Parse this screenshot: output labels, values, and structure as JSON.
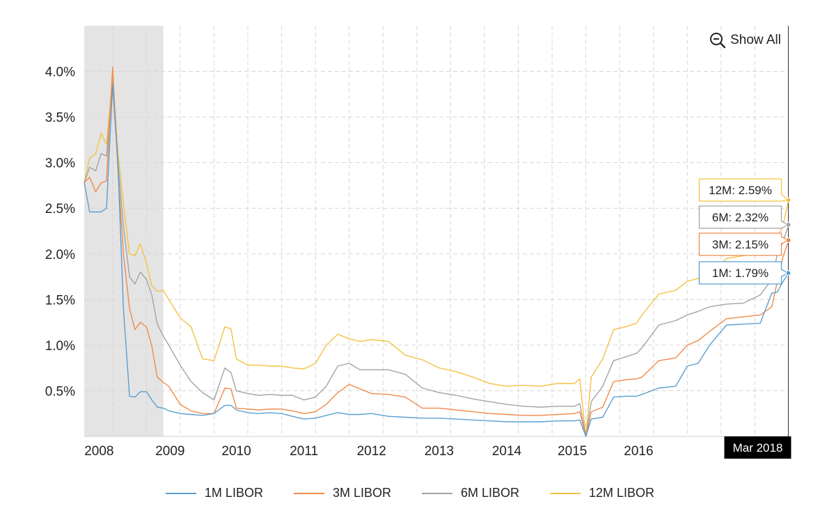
{
  "show_all_label": "Show All",
  "current_date_label": "Mar 2018",
  "colors": {
    "1M LIBOR": "#5b9fd0",
    "3M LIBOR": "#ef8a4a",
    "6M LIBOR": "#a3a3a3",
    "12M LIBOR": "#f5c142",
    "recession_band": "#e4e4e4"
  },
  "tooltips": [
    {
      "series": "12M LIBOR",
      "text": "12M: 2.59%"
    },
    {
      "series": "6M LIBOR",
      "text": "6M: 2.32%"
    },
    {
      "series": "3M LIBOR",
      "text": "3M: 2.15%"
    },
    {
      "series": "1M LIBOR",
      "text": "1M: 1.79%"
    }
  ],
  "chart_data": {
    "type": "line",
    "title": "",
    "xlabel": "",
    "ylabel": "",
    "x_tick_labels": [
      "2008",
      "2009",
      "2010",
      "2011",
      "2012",
      "2013",
      "2014",
      "2015",
      "2016"
    ],
    "y_tick_labels": [
      "0.5%",
      "1.0%",
      "1.5%",
      "2.0%",
      "2.5%",
      "3.0%",
      "3.5%",
      "4.0%"
    ],
    "y_ticks": [
      0.5,
      1.0,
      1.5,
      2.0,
      2.5,
      3.0,
      3.5,
      4.0
    ],
    "xlim": [
      2007.75,
      2018.17
    ],
    "ylim": [
      0,
      4.5
    ],
    "grid": true,
    "legend_position": "bottom",
    "shaded_region": {
      "x_start": 2007.75,
      "x_end": 2008.92
    },
    "series": [
      {
        "name": "1M LIBOR",
        "x": [
          2007.75,
          2007.83,
          2007.92,
          2008.0,
          2008.08,
          2008.17,
          2008.25,
          2008.33,
          2008.42,
          2008.5,
          2008.58,
          2008.67,
          2008.75,
          2008.83,
          2008.92,
          2009.0,
          2009.17,
          2009.33,
          2009.5,
          2009.67,
          2009.83,
          2009.92,
          2010.0,
          2010.17,
          2010.33,
          2010.5,
          2010.67,
          2010.83,
          2011.0,
          2011.17,
          2011.33,
          2011.5,
          2011.67,
          2011.83,
          2012.0,
          2012.25,
          2012.5,
          2012.75,
          2013.0,
          2013.25,
          2013.5,
          2013.75,
          2014.0,
          2014.25,
          2014.5,
          2014.75,
          2015.0,
          2015.08,
          2015.17,
          2015.25,
          2015.42,
          2015.58,
          2015.75,
          2015.92,
          2016.0,
          2016.25,
          2016.5,
          2016.67,
          2016.83,
          2017.0,
          2017.25,
          2017.5,
          2017.75,
          2017.92,
          2018.0,
          2018.08,
          2018.17
        ],
        "y": [
          2.78,
          2.46,
          2.46,
          2.46,
          2.5,
          3.85,
          2.95,
          1.4,
          0.44,
          0.43,
          0.49,
          0.49,
          0.4,
          0.32,
          0.31,
          0.28,
          0.25,
          0.24,
          0.23,
          0.25,
          0.34,
          0.34,
          0.29,
          0.26,
          0.25,
          0.26,
          0.25,
          0.22,
          0.19,
          0.2,
          0.23,
          0.26,
          0.24,
          0.24,
          0.25,
          0.22,
          0.21,
          0.2,
          0.2,
          0.19,
          0.18,
          0.17,
          0.16,
          0.16,
          0.16,
          0.17,
          0.17,
          0.18,
          0.0,
          0.19,
          0.21,
          0.43,
          0.44,
          0.44,
          0.46,
          0.53,
          0.55,
          0.77,
          0.8,
          1.0,
          1.22,
          1.23,
          1.24,
          1.57,
          1.58,
          1.69,
          1.79
        ]
      },
      {
        "name": "3M LIBOR",
        "x": [
          2007.75,
          2007.83,
          2007.92,
          2008.0,
          2008.08,
          2008.17,
          2008.25,
          2008.33,
          2008.42,
          2008.5,
          2008.58,
          2008.67,
          2008.75,
          2008.83,
          2008.92,
          2009.0,
          2009.17,
          2009.33,
          2009.5,
          2009.67,
          2009.83,
          2009.92,
          2010.0,
          2010.17,
          2010.33,
          2010.5,
          2010.67,
          2010.83,
          2011.0,
          2011.17,
          2011.33,
          2011.5,
          2011.67,
          2011.83,
          2012.0,
          2012.25,
          2012.5,
          2012.75,
          2013.0,
          2013.25,
          2013.5,
          2013.75,
          2014.0,
          2014.25,
          2014.5,
          2014.75,
          2015.0,
          2015.08,
          2015.17,
          2015.25,
          2015.42,
          2015.58,
          2015.75,
          2015.92,
          2016.0,
          2016.25,
          2016.5,
          2016.67,
          2016.83,
          2017.0,
          2017.25,
          2017.5,
          2017.75,
          2017.92,
          2018.0,
          2018.08,
          2018.17
        ],
        "y": [
          2.78,
          2.84,
          2.68,
          2.78,
          2.8,
          4.05,
          2.9,
          2.0,
          1.4,
          1.17,
          1.25,
          1.2,
          0.99,
          0.65,
          0.59,
          0.55,
          0.35,
          0.28,
          0.25,
          0.25,
          0.53,
          0.52,
          0.31,
          0.3,
          0.29,
          0.3,
          0.3,
          0.28,
          0.25,
          0.27,
          0.35,
          0.48,
          0.57,
          0.52,
          0.47,
          0.46,
          0.43,
          0.31,
          0.31,
          0.29,
          0.27,
          0.25,
          0.24,
          0.23,
          0.23,
          0.24,
          0.25,
          0.27,
          0.0,
          0.27,
          0.32,
          0.6,
          0.62,
          0.63,
          0.65,
          0.83,
          0.86,
          1.0,
          1.05,
          1.15,
          1.29,
          1.31,
          1.33,
          1.42,
          1.69,
          1.95,
          2.15
        ]
      },
      {
        "name": "6M LIBOR",
        "x": [
          2007.75,
          2007.83,
          2007.92,
          2008.0,
          2008.08,
          2008.17,
          2008.25,
          2008.33,
          2008.42,
          2008.5,
          2008.58,
          2008.67,
          2008.75,
          2008.83,
          2008.92,
          2009.0,
          2009.17,
          2009.33,
          2009.5,
          2009.67,
          2009.83,
          2009.92,
          2010.0,
          2010.17,
          2010.33,
          2010.5,
          2010.67,
          2010.83,
          2011.0,
          2011.17,
          2011.33,
          2011.5,
          2011.67,
          2011.83,
          2012.0,
          2012.25,
          2012.5,
          2012.75,
          2013.0,
          2013.25,
          2013.5,
          2013.75,
          2014.0,
          2014.25,
          2014.5,
          2014.75,
          2015.0,
          2015.08,
          2015.17,
          2015.25,
          2015.42,
          2015.58,
          2015.75,
          2015.92,
          2016.0,
          2016.25,
          2016.5,
          2016.67,
          2016.83,
          2017.0,
          2017.25,
          2017.5,
          2017.75,
          2017.92,
          2018.0,
          2018.08,
          2018.17
        ],
        "y": [
          2.78,
          2.95,
          2.91,
          3.1,
          3.07,
          3.9,
          3.0,
          2.3,
          1.75,
          1.67,
          1.8,
          1.72,
          1.55,
          1.23,
          1.1,
          1.0,
          0.78,
          0.6,
          0.48,
          0.4,
          0.75,
          0.7,
          0.5,
          0.47,
          0.45,
          0.46,
          0.45,
          0.45,
          0.4,
          0.43,
          0.55,
          0.77,
          0.8,
          0.73,
          0.73,
          0.73,
          0.68,
          0.53,
          0.48,
          0.45,
          0.41,
          0.38,
          0.35,
          0.33,
          0.32,
          0.33,
          0.33,
          0.36,
          0.0,
          0.38,
          0.55,
          0.83,
          0.87,
          0.91,
          0.97,
          1.22,
          1.27,
          1.33,
          1.37,
          1.42,
          1.45,
          1.46,
          1.55,
          1.72,
          1.99,
          2.12,
          2.32
        ]
      },
      {
        "name": "12M LIBOR",
        "x": [
          2007.75,
          2007.83,
          2007.92,
          2008.0,
          2008.08,
          2008.17,
          2008.25,
          2008.33,
          2008.42,
          2008.5,
          2008.58,
          2008.67,
          2008.75,
          2008.83,
          2008.92,
          2009.0,
          2009.17,
          2009.33,
          2009.5,
          2009.67,
          2009.83,
          2009.92,
          2010.0,
          2010.17,
          2010.33,
          2010.5,
          2010.67,
          2010.83,
          2011.0,
          2011.17,
          2011.33,
          2011.5,
          2011.67,
          2011.83,
          2012.0,
          2012.25,
          2012.5,
          2012.75,
          2013.0,
          2013.25,
          2013.5,
          2013.75,
          2014.0,
          2014.25,
          2014.5,
          2014.75,
          2015.0,
          2015.08,
          2015.17,
          2015.25,
          2015.42,
          2015.58,
          2015.75,
          2015.92,
          2016.0,
          2016.25,
          2016.5,
          2016.67,
          2016.83,
          2017.0,
          2017.25,
          2017.5,
          2017.75,
          2017.92,
          2018.0,
          2018.08,
          2018.17
        ],
        "y": [
          2.78,
          3.05,
          3.1,
          3.32,
          3.2,
          3.95,
          3.1,
          2.55,
          2.0,
          1.98,
          2.11,
          1.9,
          1.65,
          1.59,
          1.6,
          1.5,
          1.3,
          1.2,
          0.85,
          0.83,
          1.2,
          1.18,
          0.85,
          0.78,
          0.78,
          0.77,
          0.77,
          0.75,
          0.74,
          0.8,
          1.0,
          1.12,
          1.07,
          1.04,
          1.06,
          1.04,
          0.89,
          0.84,
          0.75,
          0.71,
          0.65,
          0.58,
          0.55,
          0.56,
          0.55,
          0.58,
          0.58,
          0.63,
          0.0,
          0.65,
          0.85,
          1.17,
          1.2,
          1.24,
          1.33,
          1.56,
          1.6,
          1.7,
          1.73,
          1.78,
          1.95,
          1.98,
          2.05,
          2.1,
          2.17,
          2.3,
          2.59
        ]
      }
    ]
  }
}
